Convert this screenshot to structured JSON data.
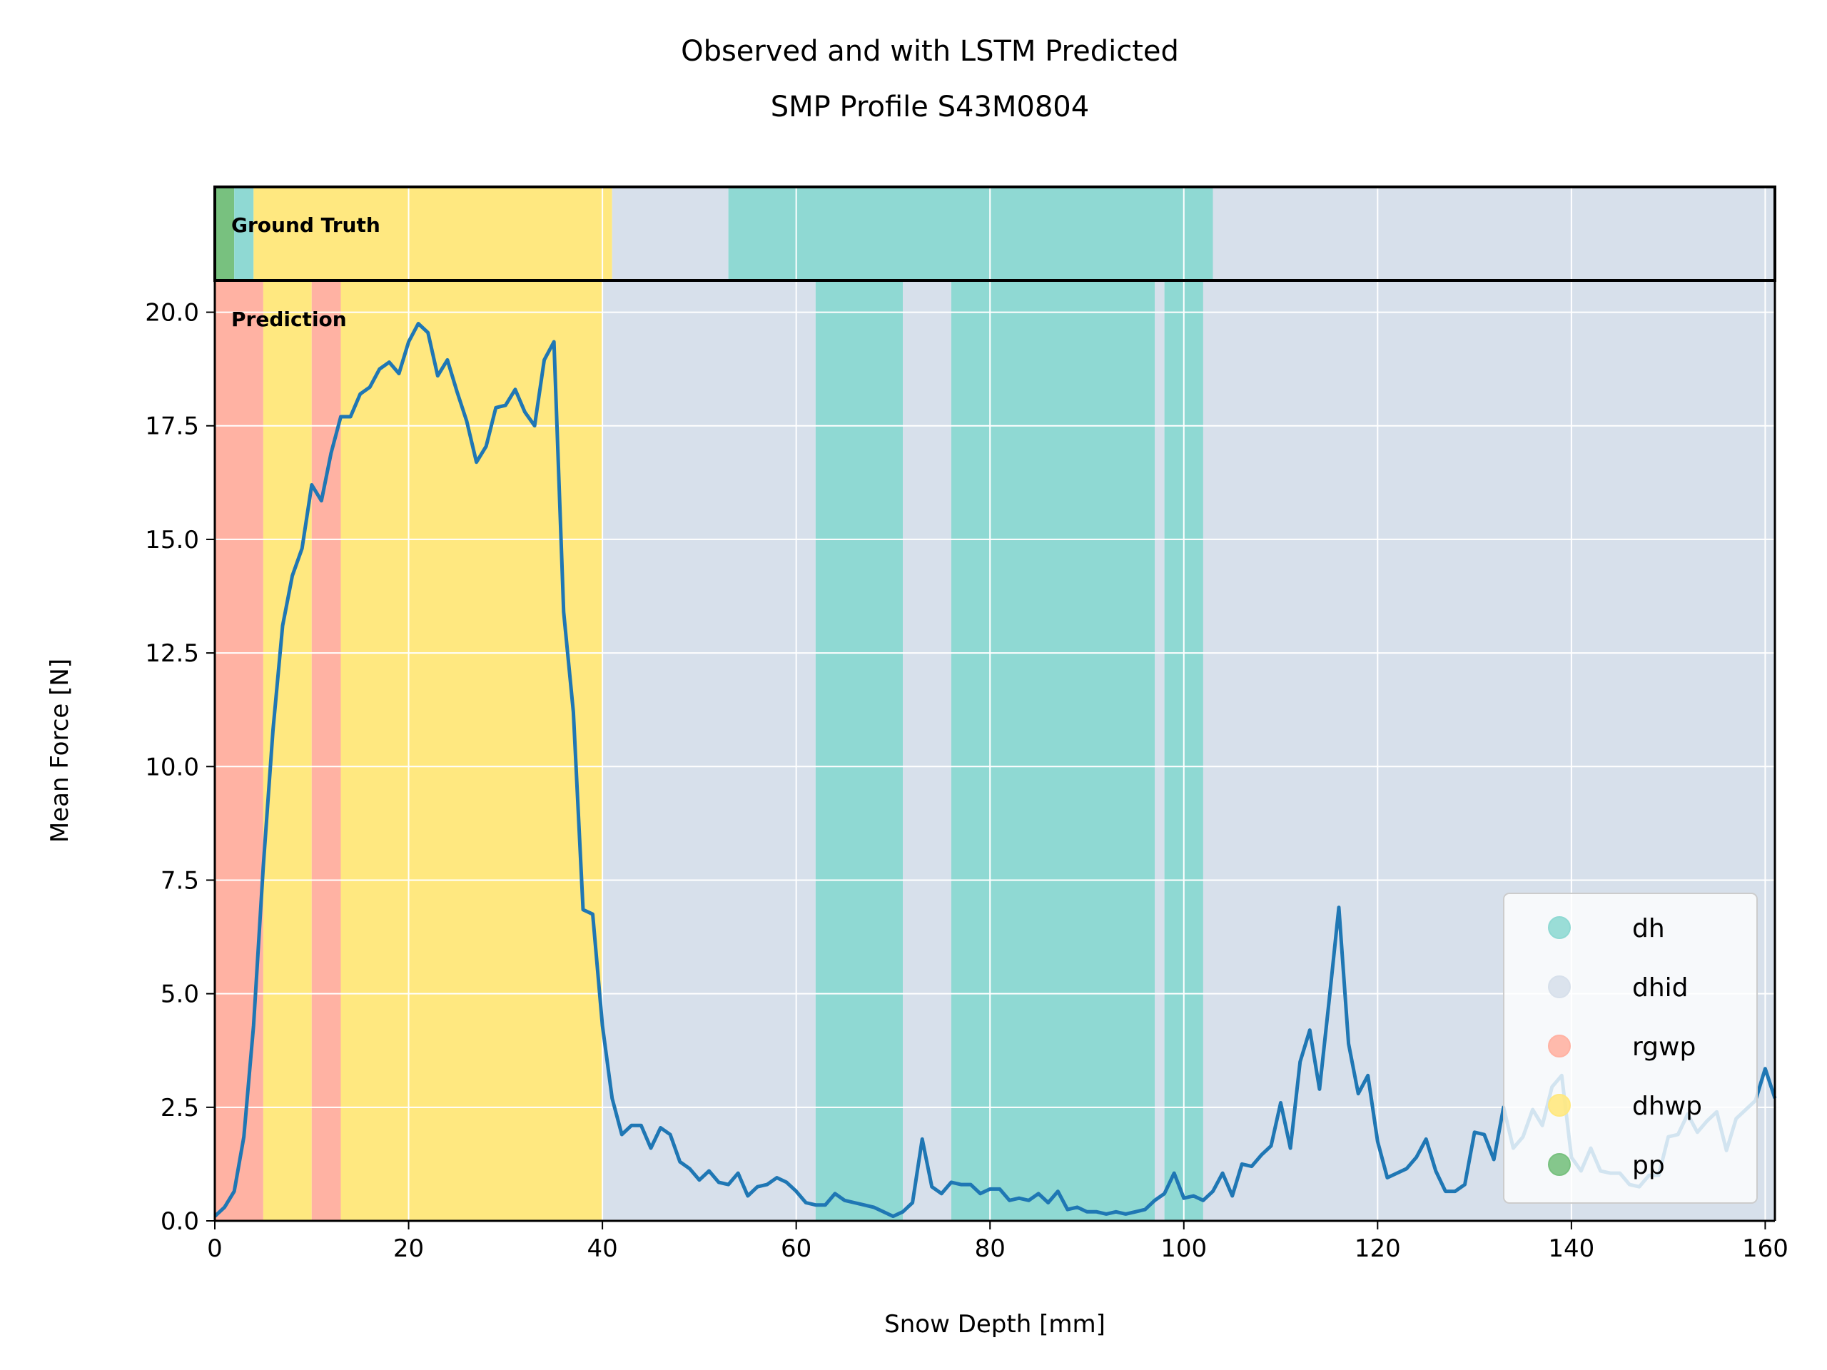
{
  "chart_data": {
    "type": "line",
    "title": "Observed and with LSTM Predicted",
    "subtitle": "SMP Profile S43M0804",
    "xlabel": "Snow Depth [mm]",
    "ylabel": "Mean Force [N]",
    "xlim": [
      0,
      161
    ],
    "ylim": [
      0,
      20.7
    ],
    "xticks": [
      0,
      20,
      40,
      60,
      80,
      100,
      120,
      140,
      160
    ],
    "yticks": [
      0.0,
      2.5,
      5.0,
      7.5,
      10.0,
      12.5,
      15.0,
      17.5,
      20.0
    ],
    "xtick_labels": [
      "0",
      "20",
      "40",
      "60",
      "80",
      "100",
      "120",
      "140",
      "160"
    ],
    "ytick_labels": [
      "0.0",
      "2.5",
      "5.0",
      "7.5",
      "10.0",
      "12.5",
      "15.0",
      "17.5",
      "20.0"
    ],
    "grid": true,
    "legend_position": "bottom-right",
    "line_color": "#1f77b4",
    "band_labels": {
      "ground_truth": "Ground Truth",
      "prediction": "Prediction"
    },
    "classes": [
      {
        "name": "dh",
        "color": "#8fd9d3"
      },
      {
        "name": "dhid",
        "color": "#d7e0eb"
      },
      {
        "name": "rgwp",
        "color": "#ffb2a3"
      },
      {
        "name": "dhwp",
        "color": "#ffe880"
      },
      {
        "name": "pp",
        "color": "#78c17f"
      }
    ],
    "ground_truth_segments": [
      {
        "start": 0,
        "end": 2,
        "class": "pp"
      },
      {
        "start": 2,
        "end": 4,
        "class": "dh"
      },
      {
        "start": 4,
        "end": 41,
        "class": "dhwp"
      },
      {
        "start": 41,
        "end": 53,
        "class": "dhid"
      },
      {
        "start": 53,
        "end": 103,
        "class": "dh"
      },
      {
        "start": 103,
        "end": 161,
        "class": "dhid"
      }
    ],
    "prediction_segments": [
      {
        "start": 0,
        "end": 5,
        "class": "rgwp"
      },
      {
        "start": 5,
        "end": 10,
        "class": "dhwp"
      },
      {
        "start": 10,
        "end": 13,
        "class": "rgwp"
      },
      {
        "start": 13,
        "end": 40,
        "class": "dhwp"
      },
      {
        "start": 40,
        "end": 62,
        "class": "dhid"
      },
      {
        "start": 62,
        "end": 71,
        "class": "dh"
      },
      {
        "start": 71,
        "end": 76,
        "class": "dhid"
      },
      {
        "start": 76,
        "end": 97,
        "class": "dh"
      },
      {
        "start": 97,
        "end": 98,
        "class": "dhid"
      },
      {
        "start": 98,
        "end": 102,
        "class": "dh"
      },
      {
        "start": 102,
        "end": 161,
        "class": "dhid"
      }
    ],
    "series": [
      {
        "x": [
          0,
          1,
          2,
          3,
          4,
          5,
          6,
          7,
          8,
          9,
          10,
          11,
          12,
          13,
          14,
          15,
          16,
          17,
          18,
          19,
          20,
          21,
          22,
          23,
          24,
          25,
          26,
          27,
          28,
          29,
          30,
          31,
          32,
          33,
          34,
          35,
          36,
          37,
          38,
          39,
          40,
          41,
          42,
          43,
          44,
          45,
          46,
          47,
          48,
          49,
          50,
          51,
          52,
          53,
          54,
          55,
          56,
          57,
          58,
          59,
          60,
          61,
          62,
          63,
          64,
          65,
          66,
          67,
          68,
          69,
          70,
          71,
          72,
          73,
          74,
          75,
          76,
          77,
          78,
          79,
          80,
          81,
          82,
          83,
          84,
          85,
          86,
          87,
          88,
          89,
          90,
          91,
          92,
          93,
          94,
          95,
          96,
          97,
          98,
          99,
          100,
          101,
          102,
          103,
          104,
          105,
          106,
          107,
          108,
          109,
          110,
          111,
          112,
          113,
          114,
          115,
          116,
          117,
          118,
          119,
          120,
          121,
          122,
          123,
          124,
          125,
          126,
          127,
          128,
          129,
          130,
          131,
          132,
          133,
          134,
          135,
          136,
          137,
          138,
          139,
          140,
          141,
          142,
          143,
          144,
          145,
          146,
          147,
          148,
          149,
          150,
          151,
          152,
          153,
          154,
          155,
          156,
          157,
          158,
          159,
          160,
          161
        ],
        "values": [
          0.1,
          0.3,
          0.65,
          1.85,
          4.3,
          7.8,
          10.8,
          13.1,
          14.2,
          14.8,
          16.2,
          15.85,
          16.9,
          17.7,
          17.7,
          18.2,
          18.35,
          18.75,
          18.9,
          18.65,
          19.35,
          19.75,
          19.55,
          18.6,
          18.95,
          18.25,
          17.6,
          16.7,
          17.05,
          17.9,
          17.95,
          18.3,
          17.8,
          17.5,
          18.95,
          19.35,
          13.4,
          11.2,
          6.85,
          6.75,
          4.3,
          2.7,
          1.9,
          2.1,
          2.1,
          1.6,
          2.05,
          1.9,
          1.3,
          1.15,
          0.9,
          1.1,
          0.85,
          0.8,
          1.05,
          0.55,
          0.75,
          0.8,
          0.95,
          0.85,
          0.65,
          0.4,
          0.35,
          0.35,
          0.6,
          0.45,
          0.4,
          0.35,
          0.3,
          0.2,
          0.1,
          0.2,
          0.4,
          1.8,
          0.75,
          0.6,
          0.85,
          0.8,
          0.8,
          0.6,
          0.7,
          0.7,
          0.45,
          0.5,
          0.45,
          0.6,
          0.4,
          0.65,
          0.25,
          0.3,
          0.2,
          0.2,
          0.15,
          0.2,
          0.15,
          0.2,
          0.25,
          0.45,
          0.6,
          1.05,
          0.5,
          0.55,
          0.45,
          0.65,
          1.05,
          0.55,
          1.25,
          1.2,
          1.45,
          1.65,
          2.6,
          1.6,
          3.5,
          4.2,
          2.9,
          4.85,
          6.9,
          3.9,
          2.8,
          3.2,
          1.75,
          0.95,
          1.05,
          1.15,
          1.4,
          1.8,
          1.1,
          0.65,
          0.65,
          0.8,
          1.95,
          1.9,
          1.35,
          2.5,
          1.6,
          1.85,
          2.45,
          2.1,
          2.95,
          3.2,
          1.4,
          1.1,
          1.6,
          1.1,
          1.05,
          1.05,
          0.8,
          0.75,
          1.0,
          1.0,
          1.85,
          1.9,
          2.35,
          1.95,
          2.2,
          2.4,
          1.55,
          2.25,
          2.45,
          2.65,
          3.35,
          2.7
        ]
      }
    ]
  }
}
